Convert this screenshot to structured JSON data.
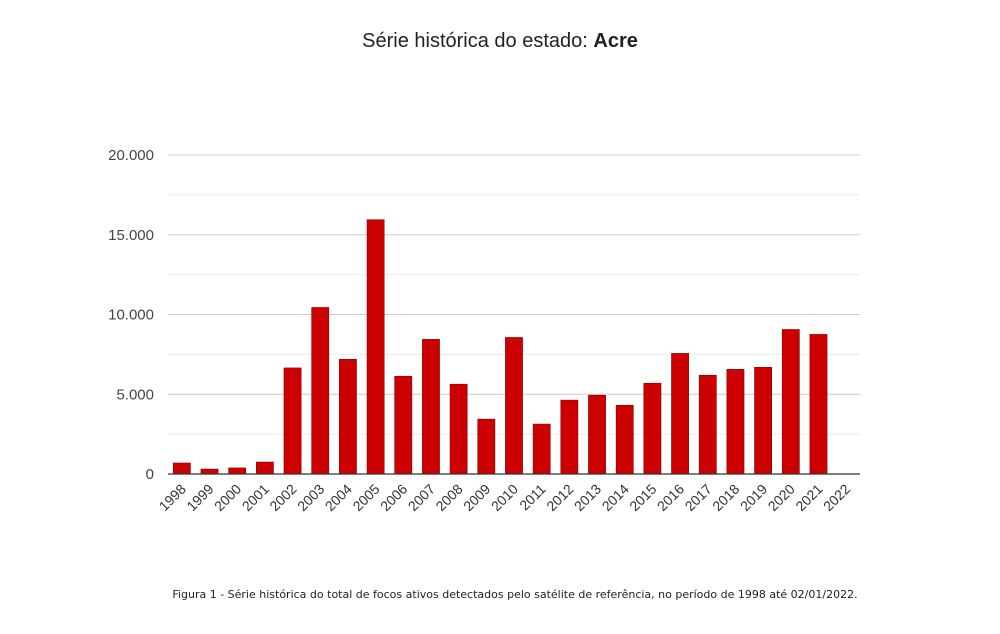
{
  "chart_data": {
    "type": "bar",
    "title_prefix": "Série histórica do estado:",
    "title_state": "Acre",
    "xlabel": "",
    "ylabel": "",
    "ylim": [
      0,
      20000
    ],
    "yticks": [
      0,
      5000,
      10000,
      15000,
      20000
    ],
    "ytick_labels": [
      "0",
      "5.000",
      "10.000",
      "15.000",
      "20.000"
    ],
    "grid": true,
    "bar_color": "#cc0000",
    "categories": [
      "1998",
      "1999",
      "2000",
      "2001",
      "2002",
      "2003",
      "2004",
      "2005",
      "2006",
      "2007",
      "2008",
      "2009",
      "2010",
      "2011",
      "2012",
      "2013",
      "2014",
      "2015",
      "2016",
      "2017",
      "2018",
      "2019",
      "2020",
      "2021",
      "2022"
    ],
    "values": [
      690,
      310,
      380,
      750,
      6650,
      10440,
      7190,
      15940,
      6130,
      8440,
      5630,
      3440,
      8560,
      3130,
      4630,
      4940,
      4310,
      5690,
      7560,
      6190,
      6560,
      6690,
      9060,
      8750,
      0
    ]
  },
  "caption": "Figura 1 - Série histórica do total de focos ativos detectados pelo satélite de referência, no período de 1998 até 02/01/2022."
}
